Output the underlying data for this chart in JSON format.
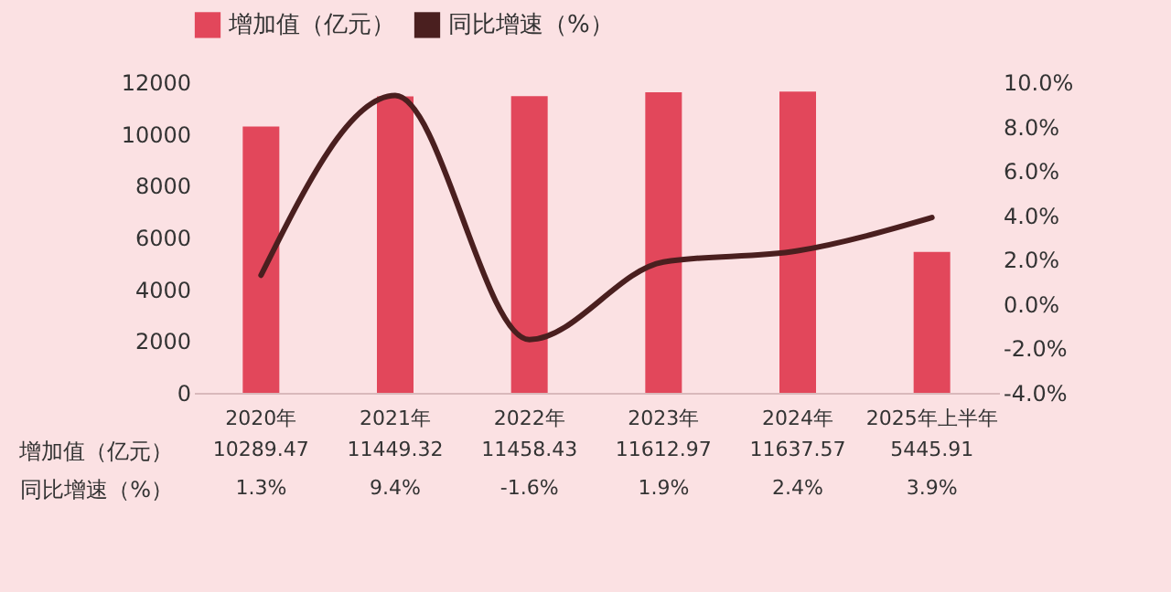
{
  "chart_data": {
    "type": "bar",
    "categories": [
      "2020年",
      "2021年",
      "2022年",
      "2023年",
      "2024年",
      "2025年上半年"
    ],
    "series": [
      {
        "name": "增加值（亿元）",
        "color": "#e2475b",
        "values": [
          10289.47,
          11449.32,
          11458.43,
          11612.97,
          11637.57,
          5445.91
        ],
        "value_labels": [
          "10289.47",
          "11449.32",
          "11458.43",
          "11612.97",
          "11637.57",
          "5445.91"
        ]
      },
      {
        "name": "同比增速（%）",
        "type": "line",
        "axis": "y2",
        "color": "#4a1f1f",
        "values": [
          1.3,
          9.4,
          -1.6,
          1.9,
          2.4,
          3.9
        ],
        "value_labels": [
          "1.3%",
          "9.4%",
          "-1.6%",
          "1.9%",
          "2.4%",
          "3.9%"
        ]
      }
    ],
    "ylim": [
      0,
      12000
    ],
    "yticks": [
      0,
      2000,
      4000,
      6000,
      8000,
      10000,
      12000
    ],
    "y2lim": [
      -4,
      10
    ],
    "y2ticks": [
      {
        "value": -4,
        "label": "-4.0%"
      },
      {
        "value": -2,
        "label": "-2.0%"
      },
      {
        "value": 0,
        "label": "0.0%"
      },
      {
        "value": 2,
        "label": "2.0%"
      },
      {
        "value": 4,
        "label": "4.0%"
      },
      {
        "value": 6,
        "label": "6.0%"
      },
      {
        "value": 8,
        "label": "8.0%"
      },
      {
        "value": 10,
        "label": "10.0%"
      }
    ],
    "legend": "top",
    "grid": false
  }
}
